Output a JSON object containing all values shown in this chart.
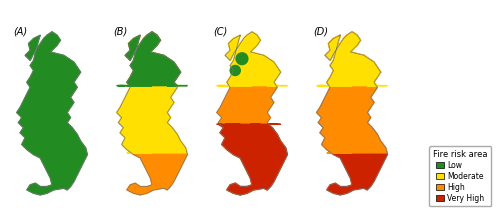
{
  "panels": [
    "(A)",
    "(B)",
    "(C)",
    "(D)"
  ],
  "colors": {
    "low": "#228B22",
    "moderate": "#FFE000",
    "high": "#FF8C00",
    "very_high": "#CC2200"
  },
  "legend_title": "Fire risk area",
  "legend_items": [
    "Low",
    "Moderate",
    "High",
    "Very High"
  ],
  "bg_color": "#ffffff"
}
